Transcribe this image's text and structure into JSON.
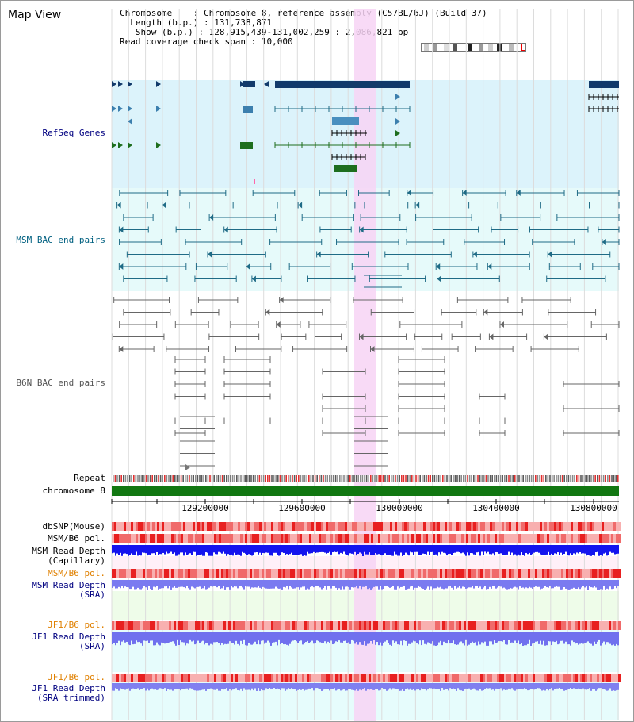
{
  "view": {
    "title": "Map View",
    "info": {
      "chromosome_label": "Chromosome",
      "chromosome_value": "Chromosome 8, reference assembly (C57BL/6J) (Build 37)",
      "length_label": "Length (b.p.)",
      "length_value": "131,738,871",
      "show_label": "Show (b.p.)",
      "show_value": "128,915,439-131,002,259 : 2,086,821 bp",
      "coverage_label": "Read coverage check span",
      "coverage_value": "10,000"
    }
  },
  "tracks": {
    "refseq": "RefSeq Genes",
    "msm_bac": "MSM BAC end pairs",
    "b6n_bac": "B6N BAC end pairs",
    "repeat": "Repeat",
    "chromosome": "chromosome 8",
    "dbsnp": "dbSNP(Mouse)",
    "msm_b6_pol": "MSM/B6 pol.",
    "msm_depth_cap_1": "MSM Read Depth",
    "msm_depth_cap_2": "(Capillary)",
    "msm_b6_pol_sra": "MSM/B6 pol.",
    "msm_depth_sra_1": "MSM Read Depth",
    "msm_depth_sra_2": "(SRA)",
    "jf1_b6_pol": "JF1/B6 pol.",
    "jf1_depth_sra_1": "JF1 Read Depth",
    "jf1_depth_sra_2": "(SRA)",
    "jf1_b6_pol_trim": "JF1/B6 pol.",
    "jf1_depth_trim_1": "JF1 Read Depth",
    "jf1_depth_trim_2": "(SRA trimmed)"
  },
  "axis": {
    "ticks": [
      "129200000",
      "129600000",
      "130000000",
      "130400000",
      "130800000"
    ]
  },
  "colors": {
    "refseq_bg": "#dcf3fb",
    "msm_bg": "#e6fafa",
    "highlight": "#f6d4f4",
    "refseq_dark": "#123a6b",
    "refseq_mid": "#4a8fbf",
    "refseq_green": "#1e6e1e",
    "msm_line": "#1f6b86",
    "b6n_line": "#666666",
    "chromosome": "#117711",
    "depth": "#1010ee",
    "depth_sra": "#7878f0",
    "snp": "#f28c8c",
    "label_blue": "#000080",
    "label_teal": "#006080",
    "label_orange": "#e08000"
  }
}
